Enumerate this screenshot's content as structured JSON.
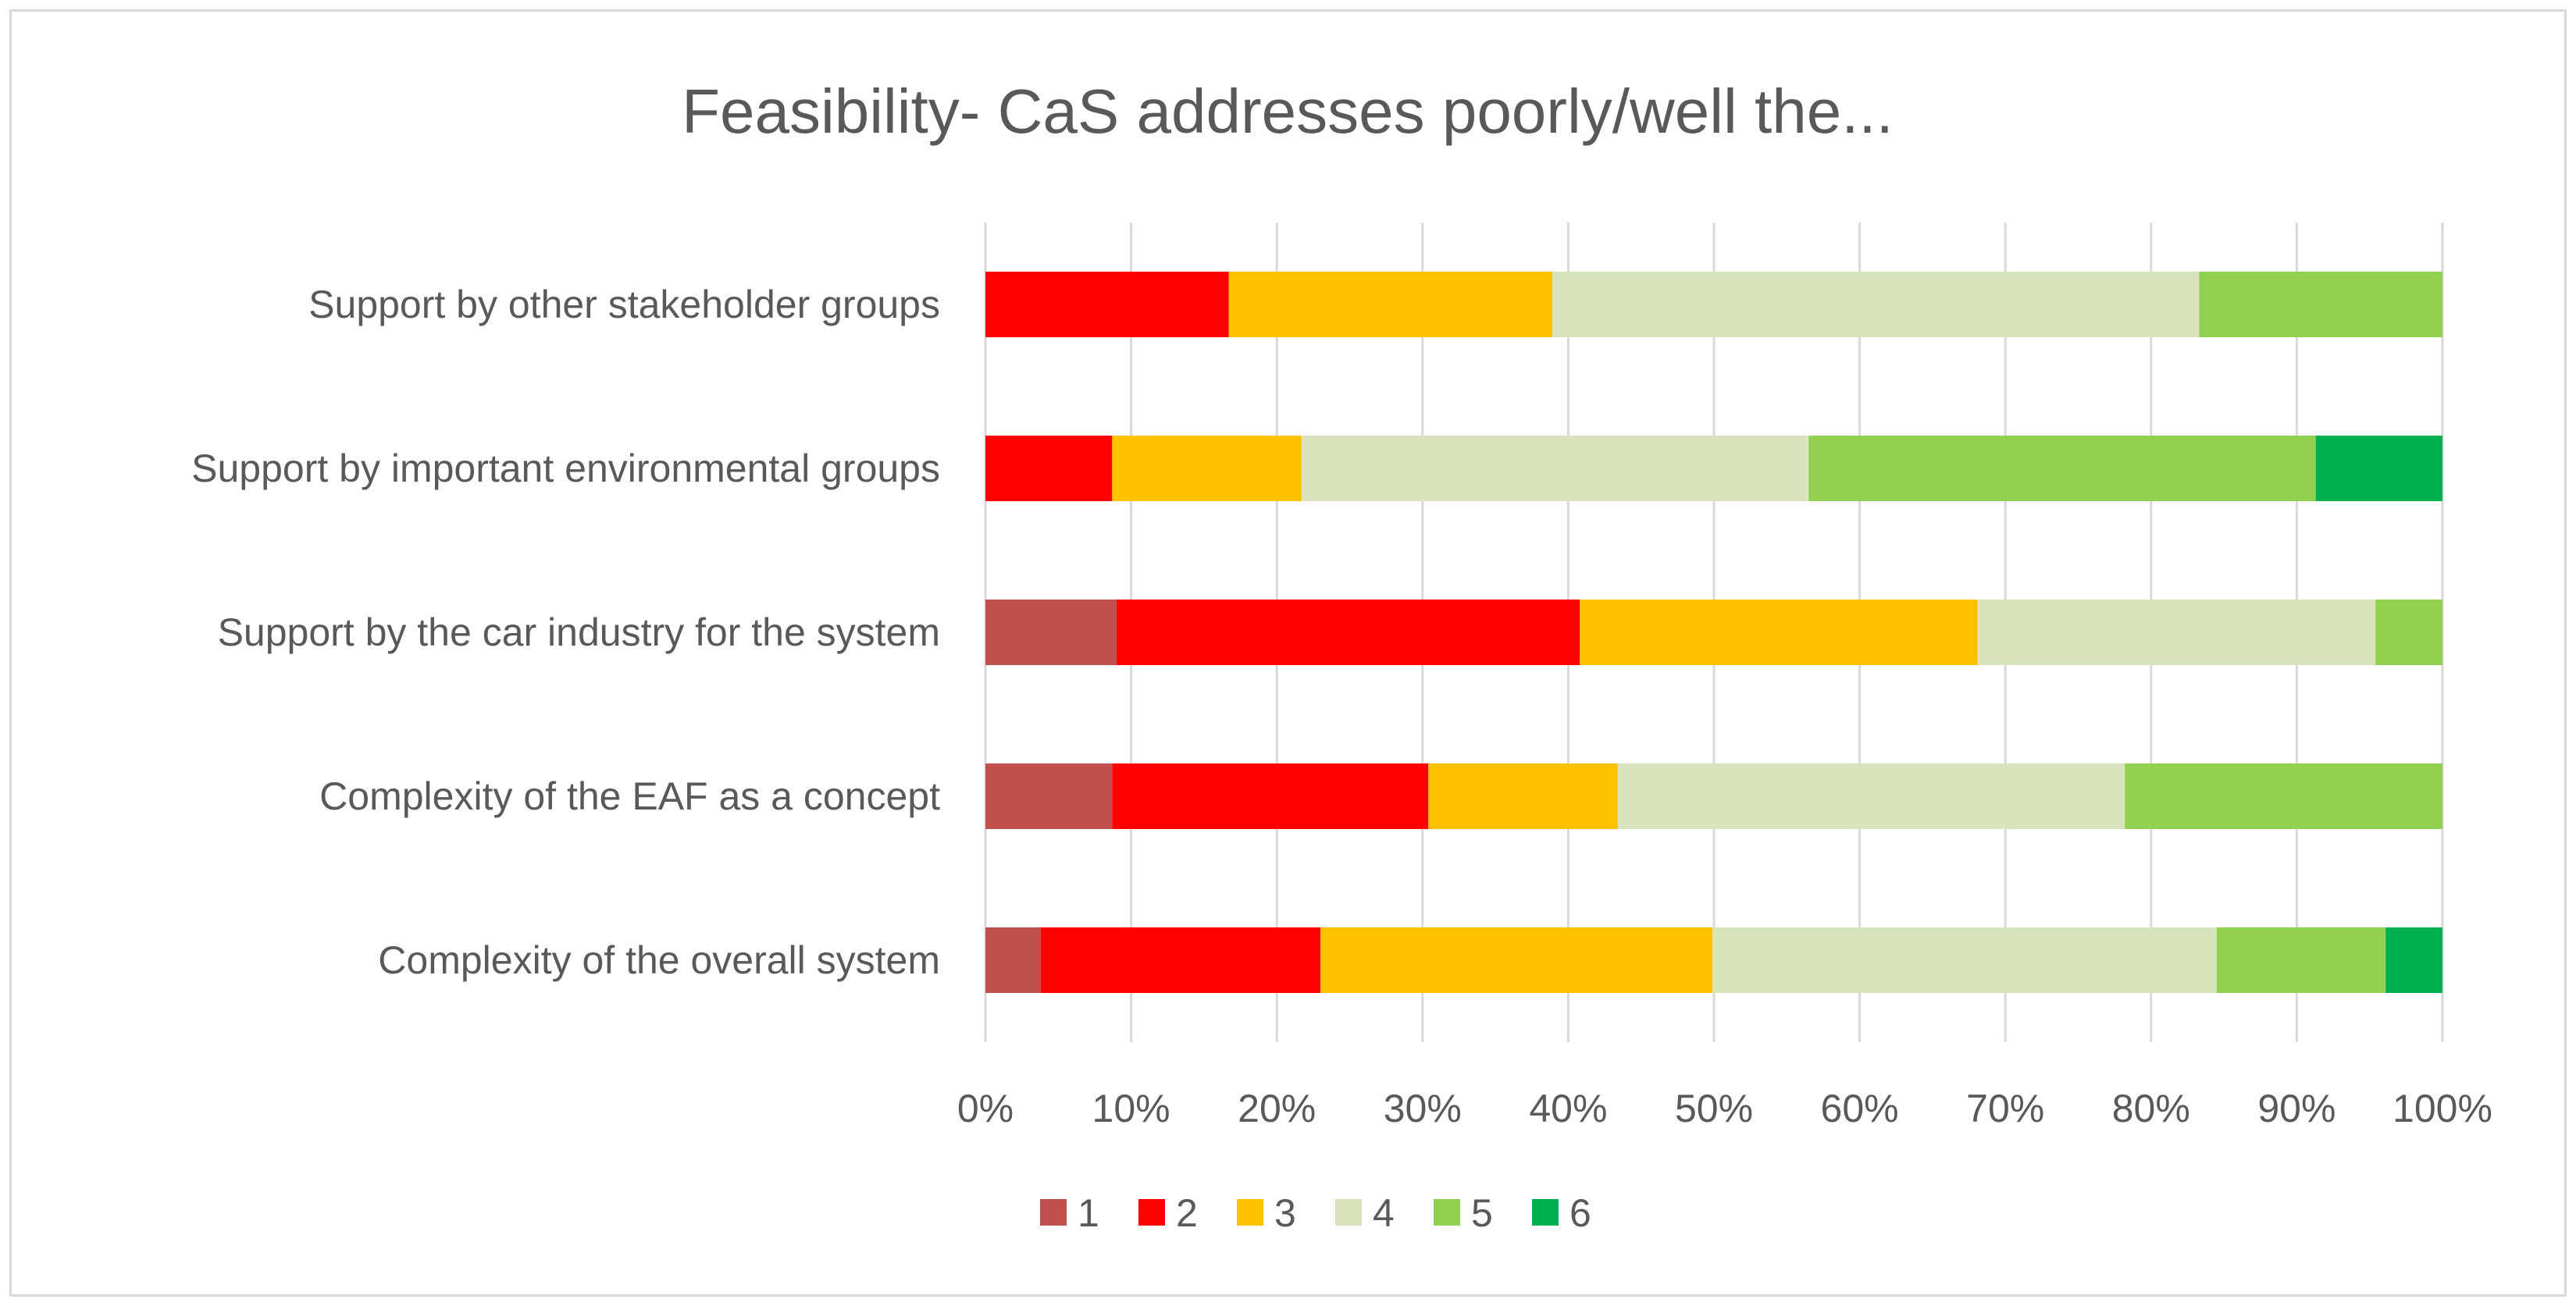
{
  "chart_data": {
    "type": "bar",
    "orientation": "horizontal",
    "stacked": "percent",
    "title": "Feasibility- CaS addresses poorly/well the...",
    "categories": [
      "Support by other stakeholder groups",
      "Support by important environmental groups",
      "Support by the car industry for the system",
      "Complexity of the EAF as a concept",
      "Complexity of the overall system"
    ],
    "series": [
      {
        "name": "1",
        "color": "#c0504d",
        "values": [
          0,
          0,
          9,
          8.7,
          3.8
        ]
      },
      {
        "name": "2",
        "color": "#ff0000",
        "values": [
          16.7,
          8.7,
          31.8,
          21.7,
          19.2
        ]
      },
      {
        "name": "3",
        "color": "#ffc000",
        "values": [
          22.2,
          13,
          27.3,
          13,
          26.9
        ]
      },
      {
        "name": "4",
        "color": "#d8e4bc",
        "values": [
          44.4,
          34.8,
          27.3,
          34.8,
          34.6
        ]
      },
      {
        "name": "5",
        "color": "#92d050",
        "values": [
          16.7,
          34.8,
          4.6,
          21.8,
          11.6
        ]
      },
      {
        "name": "6",
        "color": "#00b050",
        "values": [
          0,
          8.7,
          0,
          0,
          3.9
        ]
      }
    ],
    "x_ticks": [
      "0%",
      "10%",
      "20%",
      "30%",
      "40%",
      "50%",
      "60%",
      "70%",
      "80%",
      "90%",
      "100%"
    ],
    "xlim": [
      0,
      100
    ],
    "xlabel": "",
    "ylabel": "",
    "grid": true,
    "legend": "bottom",
    "colors": {
      "grid": "#d9d9d9",
      "text": "#595959",
      "border": "#d9d9d9"
    }
  }
}
